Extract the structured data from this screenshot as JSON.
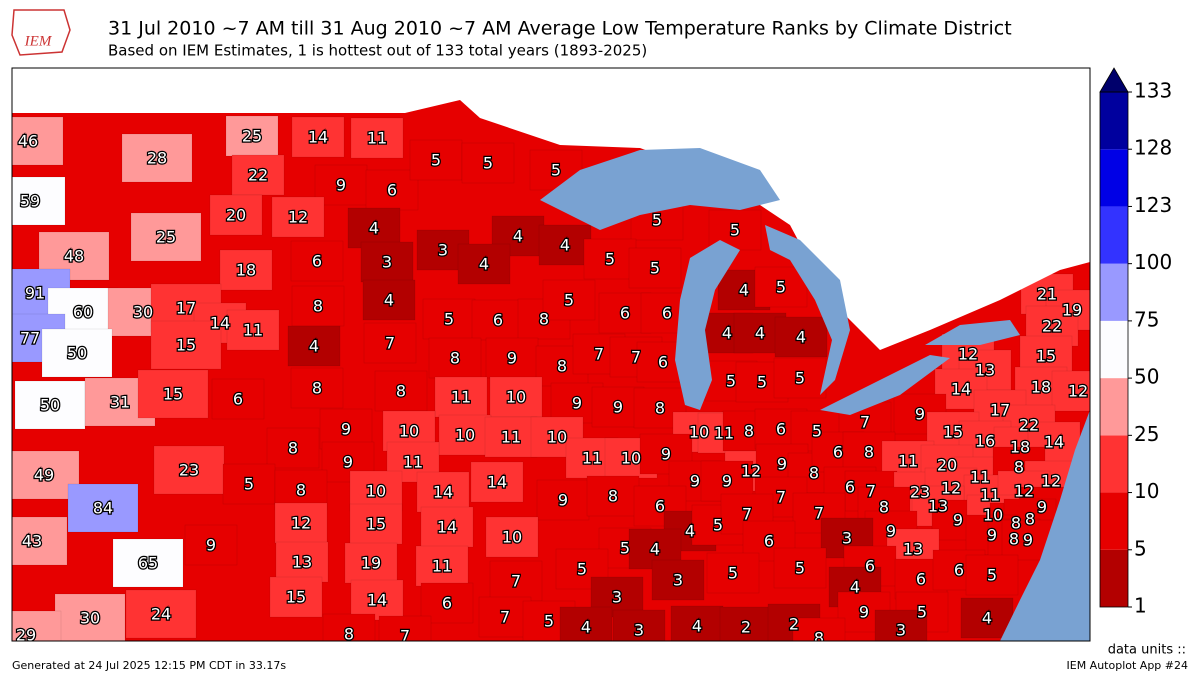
{
  "header": {
    "logo": "IEM",
    "title": "31 Jul 2010 ~7 AM till 31 Aug 2010 ~7 AM Average Low Temperature Ranks by Climate District",
    "subtitle": "Based on IEM Estimates, 1 is hottest out of 133 total years (1893-2025)"
  },
  "districts": [
    46,
    28,
    59,
    25,
    48,
    25,
    14,
    11,
    22,
    9,
    6,
    20,
    12,
    4,
    5,
    5,
    5,
    3,
    4,
    4,
    4,
    5,
    5,
    18,
    6,
    3,
    4,
    5,
    5,
    91,
    60,
    30,
    17,
    77,
    50,
    14,
    11,
    8,
    5,
    6,
    8,
    5,
    6,
    6,
    4,
    5,
    15,
    4,
    7,
    8,
    9,
    8,
    7,
    7,
    6,
    4,
    4,
    4,
    21,
    19,
    22,
    12,
    13,
    15,
    50,
    31,
    15,
    6,
    8,
    8,
    11,
    10,
    9,
    9,
    8,
    5,
    5,
    5,
    14,
    18,
    12,
    9,
    10,
    10,
    11,
    10,
    10,
    11,
    8,
    6,
    5,
    7,
    9,
    17,
    22,
    15,
    16,
    18,
    14,
    8,
    9,
    11,
    11,
    10,
    9,
    12,
    9,
    8,
    6,
    8,
    11,
    20,
    11,
    8,
    12,
    49,
    23,
    5,
    8,
    10,
    14,
    14,
    9,
    9,
    6,
    7,
    23,
    12,
    11,
    12,
    9,
    84,
    12,
    15,
    14,
    9,
    8,
    6,
    7,
    8,
    13,
    9,
    10,
    8,
    8,
    43,
    9,
    10,
    4,
    5,
    7,
    7,
    9,
    9,
    8,
    9,
    5,
    4,
    6,
    3,
    13,
    65,
    13,
    19,
    11,
    7,
    5,
    5,
    5,
    6,
    6,
    6,
    5,
    3,
    4,
    15,
    14,
    6,
    3,
    30,
    24,
    7,
    5,
    4,
    9,
    5,
    4,
    29,
    8,
    7,
    3,
    4,
    2,
    2,
    8,
    3
  ],
  "colorbar": {
    "ticks": [
      1,
      5,
      10,
      25,
      50,
      75,
      100,
      123,
      128,
      133
    ],
    "colors": [
      "#b30000",
      "#e60000",
      "#ff3333",
      "#ff9999",
      "#fdfdff",
      "#9999ff",
      "#3333ff",
      "#0000e6",
      "#00009e"
    ],
    "over_color": "#00006b",
    "units": "data units ::"
  },
  "footer": {
    "generated": "Generated at 24 Jul 2025 12:15 PM CDT in 33.17s",
    "app": "IEM Autoplot App #24"
  }
}
